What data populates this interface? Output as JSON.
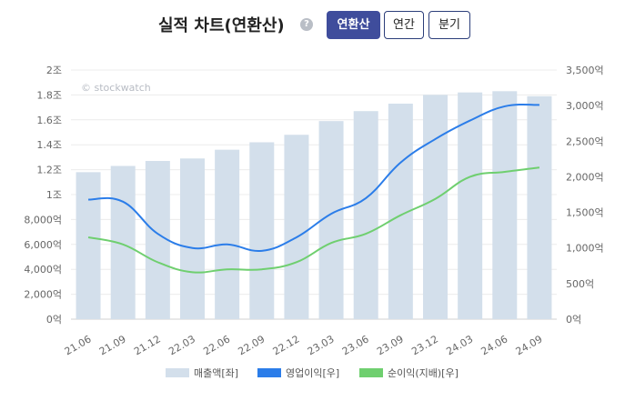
{
  "header": {
    "title": "실적 차트(연환산)",
    "help_icon": "question-circle-icon",
    "help_glyph": "?",
    "buttons": [
      {
        "label": "연환산",
        "active": true
      },
      {
        "label": "연간",
        "active": false
      },
      {
        "label": "분기",
        "active": false
      }
    ],
    "active_color": "#3f4d9c"
  },
  "chart_data": {
    "type": "bar+line",
    "watermark": "© stockwatch",
    "categories": [
      "21.06",
      "21.09",
      "21.12",
      "22.03",
      "22.06",
      "22.09",
      "22.12",
      "23.03",
      "23.06",
      "23.09",
      "23.12",
      "24.03",
      "24.06",
      "24.09"
    ],
    "left_axis": {
      "ticks": [
        0,
        2000,
        4000,
        6000,
        8000,
        10000,
        12000,
        14000,
        16000,
        18000,
        20000
      ],
      "tick_labels": [
        "0억",
        "2,000억",
        "4,000억",
        "6,000억",
        "8,000억",
        "1조",
        "1.2조",
        "1.4조",
        "1.6조",
        "1.8조",
        "2조"
      ],
      "ylim": [
        0,
        20000
      ],
      "unit": "억"
    },
    "right_axis": {
      "ticks": [
        0,
        500,
        1000,
        1500,
        2000,
        2500,
        3000,
        3500
      ],
      "tick_labels": [
        "0억",
        "500억",
        "1,000억",
        "1,500억",
        "2,000억",
        "2,500억",
        "3,000억",
        "3,500억"
      ],
      "ylim": [
        0,
        3500
      ],
      "unit": "억"
    },
    "series": [
      {
        "name": "매출액[좌]",
        "type": "bar",
        "axis": "left",
        "color": "#d3dfeb",
        "values": [
          11800,
          12300,
          12700,
          12900,
          13600,
          14200,
          14800,
          15900,
          16700,
          17300,
          18000,
          18200,
          18300,
          17900
        ]
      },
      {
        "name": "영업이익[우]",
        "type": "line",
        "axis": "right",
        "color": "#2b7de9",
        "values": [
          1680,
          1650,
          1200,
          1000,
          1050,
          960,
          1150,
          1480,
          1700,
          2200,
          2530,
          2790,
          2990,
          3010
        ]
      },
      {
        "name": "순이익(지배)[우]",
        "type": "line",
        "axis": "right",
        "color": "#6fcf6f",
        "values": [
          1150,
          1050,
          800,
          660,
          700,
          700,
          800,
          1070,
          1200,
          1460,
          1690,
          2000,
          2070,
          2130
        ]
      }
    ],
    "legend_position": "bottom-center",
    "grid": "horizontal"
  }
}
